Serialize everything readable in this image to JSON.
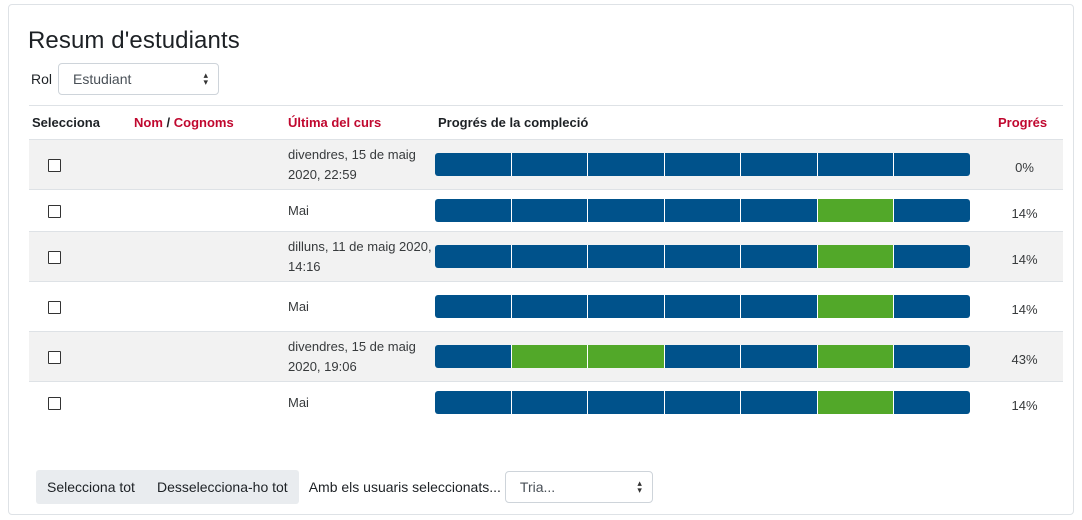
{
  "page": {
    "title": "Resum d'estudiants",
    "role_label": "Rol",
    "role_selected": "Estudiant"
  },
  "table": {
    "headers": {
      "select": "Selecciona",
      "first_name": "Nom",
      "name_sep": "/",
      "last_name": "Cognoms",
      "last_access": "Última del curs",
      "completion": "Progrés de la compleció",
      "progress": "Progrés"
    },
    "segments_per_row": 7,
    "rows": [
      {
        "last_access": "divendres, 15 de maig 2020, 22:59",
        "completed": [],
        "progress": "0%"
      },
      {
        "last_access": "Mai",
        "completed": [
          5
        ],
        "progress": "14%"
      },
      {
        "last_access": "dilluns, 11 de maig 2020, 14:16",
        "completed": [
          5
        ],
        "progress": "14%"
      },
      {
        "last_access": "Mai",
        "completed": [
          5
        ],
        "progress": "14%"
      },
      {
        "last_access": "divendres, 15 de maig 2020, 19:06",
        "completed": [
          1,
          2,
          5
        ],
        "progress": "43%"
      },
      {
        "last_access": "Mai",
        "completed": [
          5
        ],
        "progress": "14%"
      }
    ]
  },
  "footer": {
    "select_all": "Selecciona tot",
    "deselect_all": "Desselecciona-ho tot",
    "with_selected": "Amb els usuaris seleccionats...",
    "action_selected": "Tria..."
  },
  "colors": {
    "incomplete": "#00528b",
    "complete": "#52a829",
    "sort_link": "#c0082f"
  }
}
